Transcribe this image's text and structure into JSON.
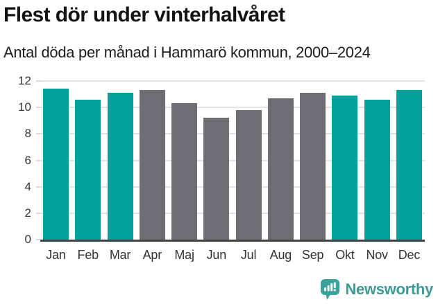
{
  "header": {
    "title": "Flest dör under vinterhalvåret",
    "subtitle": "Antal döda per månad i Hammarö kommun, 2000–2024"
  },
  "chart_data": {
    "type": "bar",
    "title": "Flest dör under vinterhalvåret",
    "subtitle": "Antal döda per månad i Hammarö kommun, 2000–2024",
    "categories": [
      "Jan",
      "Feb",
      "Mar",
      "Apr",
      "Maj",
      "Jun",
      "Jul",
      "Aug",
      "Sep",
      "Okt",
      "Nov",
      "Dec"
    ],
    "values": [
      11.4,
      10.6,
      11.1,
      11.3,
      10.3,
      9.2,
      9.8,
      10.7,
      11.1,
      10.9,
      10.6,
      11.3
    ],
    "bar_colors": [
      "teal",
      "teal",
      "teal",
      "gray",
      "gray",
      "gray",
      "gray",
      "gray",
      "gray",
      "teal",
      "teal",
      "teal"
    ],
    "palette": {
      "teal": "#00a29b",
      "gray": "#6d6d73"
    },
    "xlabel": "",
    "ylabel": "",
    "ylim": [
      0,
      12
    ],
    "yticks": [
      0,
      2,
      4,
      6,
      8,
      10,
      12
    ],
    "grid": "horizontal",
    "legend": "none"
  },
  "footer": {
    "brand": "Newsworthy",
    "icon": "chart-bubble-icon"
  },
  "colors": {
    "accent_teal": "#00a29b",
    "neutral_gray": "#6d6d73",
    "logo_teal": "#3aa29c",
    "logo_text": "#3a9a94",
    "gridline": "#e3e3e3",
    "axis_line": "#404040",
    "tick_label": "#333333",
    "title_text": "#141414"
  }
}
